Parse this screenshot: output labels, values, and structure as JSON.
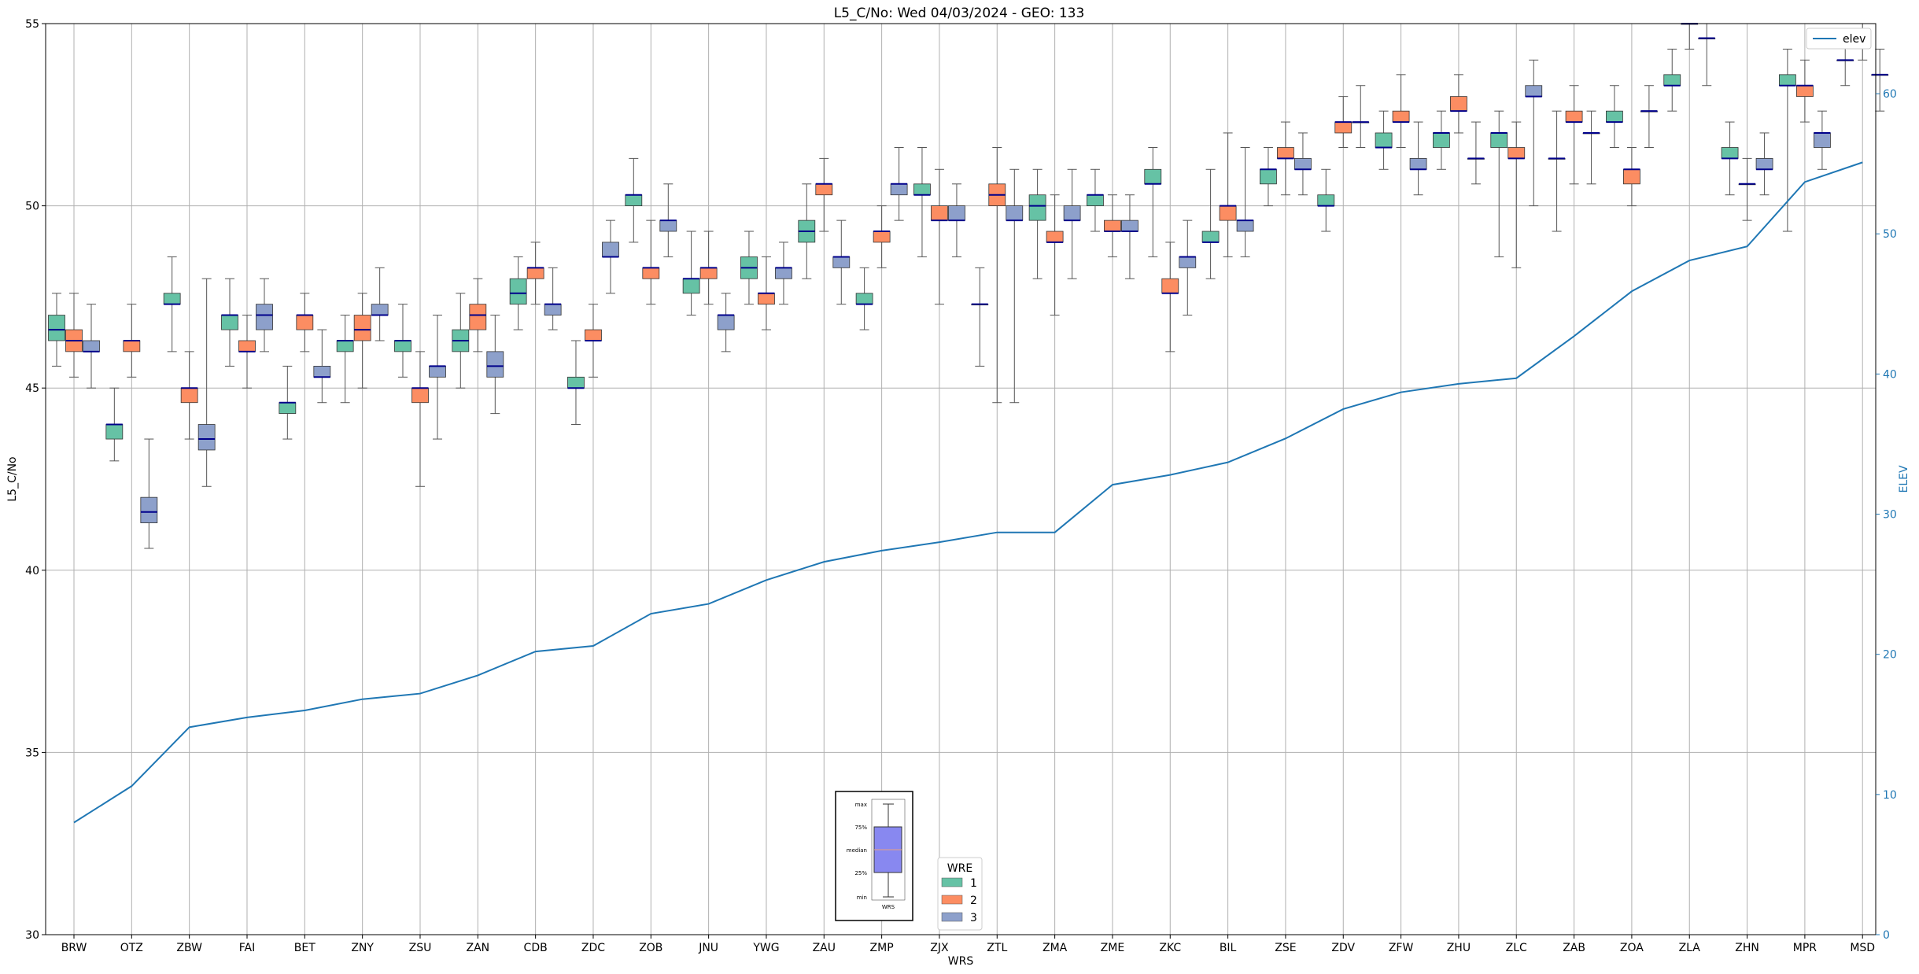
{
  "chart_data": {
    "type": "box",
    "title": "L5_C/No: Wed 04/03/2024 - GEO: 133",
    "xlabel": "WRS",
    "ylabel": "L5_C/No",
    "y2label": "ELEV",
    "ylim": [
      30,
      55
    ],
    "y2lim": [
      0,
      65
    ],
    "yticks": [
      30,
      35,
      40,
      45,
      50,
      55
    ],
    "y2ticks": [
      0,
      10,
      20,
      30,
      40,
      50,
      60
    ],
    "grid": true,
    "colors": {
      "wre1": "#66c2a5",
      "wre2": "#fc8d62",
      "wre3": "#8da0cb",
      "median": "#00008b",
      "elev": "#1f77b4",
      "whisker": "#555555"
    },
    "categories": [
      "BRW",
      "OTZ",
      "ZBW",
      "FAI",
      "BET",
      "ZNY",
      "ZSU",
      "ZAN",
      "CDB",
      "ZDC",
      "ZOB",
      "JNU",
      "YWG",
      "ZAU",
      "ZMP",
      "ZJX",
      "ZTL",
      "ZMA",
      "ZME",
      "ZKC",
      "BIL",
      "ZSE",
      "ZDV",
      "ZFW",
      "ZHU",
      "ZLC",
      "ZAB",
      "ZOA",
      "ZLA",
      "ZHN",
      "MPR",
      "MSD"
    ],
    "wre_legend": {
      "title": "WRE",
      "entries": [
        "1",
        "2",
        "3"
      ]
    },
    "elev_legend": "elev",
    "boxes": [
      {
        "station": "BRW",
        "wre": 1,
        "min": 45.6,
        "q1": 46.3,
        "median": 46.6,
        "q3": 47.0,
        "max": 47.6
      },
      {
        "station": "BRW",
        "wre": 2,
        "min": 45.3,
        "q1": 46.0,
        "median": 46.3,
        "q3": 46.6,
        "max": 47.6
      },
      {
        "station": "BRW",
        "wre": 3,
        "min": 45.0,
        "q1": 46.0,
        "median": 46.0,
        "q3": 46.3,
        "max": 47.3
      },
      {
        "station": "OTZ",
        "wre": 1,
        "min": 43.0,
        "q1": 43.6,
        "median": 44.0,
        "q3": 44.0,
        "max": 45.0
      },
      {
        "station": "OTZ",
        "wre": 2,
        "min": 45.3,
        "q1": 46.0,
        "median": 46.3,
        "q3": 46.3,
        "max": 47.3
      },
      {
        "station": "OTZ",
        "wre": 3,
        "min": 40.6,
        "q1": 41.3,
        "median": 41.6,
        "q3": 42.0,
        "max": 43.6
      },
      {
        "station": "ZBW",
        "wre": 1,
        "min": 46.0,
        "q1": 47.3,
        "median": 47.3,
        "q3": 47.6,
        "max": 48.6
      },
      {
        "station": "ZBW",
        "wre": 2,
        "min": 43.6,
        "q1": 44.6,
        "median": 45.0,
        "q3": 45.0,
        "max": 46.0
      },
      {
        "station": "ZBW",
        "wre": 3,
        "min": 42.3,
        "q1": 43.3,
        "median": 43.6,
        "q3": 44.0,
        "max": 48.0
      },
      {
        "station": "FAI",
        "wre": 1,
        "min": 45.6,
        "q1": 46.6,
        "median": 47.0,
        "q3": 47.0,
        "max": 48.0
      },
      {
        "station": "FAI",
        "wre": 2,
        "min": 45.0,
        "q1": 46.0,
        "median": 46.0,
        "q3": 46.3,
        "max": 47.0
      },
      {
        "station": "FAI",
        "wre": 3,
        "min": 46.0,
        "q1": 46.6,
        "median": 47.0,
        "q3": 47.3,
        "max": 48.0
      },
      {
        "station": "BET",
        "wre": 1,
        "min": 43.6,
        "q1": 44.3,
        "median": 44.6,
        "q3": 44.6,
        "max": 45.6
      },
      {
        "station": "BET",
        "wre": 2,
        "min": 46.0,
        "q1": 46.6,
        "median": 47.0,
        "q3": 47.0,
        "max": 47.6
      },
      {
        "station": "BET",
        "wre": 3,
        "min": 44.6,
        "q1": 45.3,
        "median": 45.3,
        "q3": 45.6,
        "max": 46.6
      },
      {
        "station": "ZNY",
        "wre": 1,
        "min": 44.6,
        "q1": 46.0,
        "median": 46.3,
        "q3": 46.3,
        "max": 47.0
      },
      {
        "station": "ZNY",
        "wre": 2,
        "min": 45.0,
        "q1": 46.3,
        "median": 46.6,
        "q3": 47.0,
        "max": 47.6
      },
      {
        "station": "ZNY",
        "wre": 3,
        "min": 46.3,
        "q1": 47.0,
        "median": 47.0,
        "q3": 47.3,
        "max": 48.3
      },
      {
        "station": "ZSU",
        "wre": 1,
        "min": 45.3,
        "q1": 46.0,
        "median": 46.3,
        "q3": 46.3,
        "max": 47.3
      },
      {
        "station": "ZSU",
        "wre": 2,
        "min": 42.3,
        "q1": 44.6,
        "median": 45.0,
        "q3": 45.0,
        "max": 46.0
      },
      {
        "station": "ZSU",
        "wre": 3,
        "min": 43.6,
        "q1": 45.3,
        "median": 45.6,
        "q3": 45.6,
        "max": 47.0
      },
      {
        "station": "ZAN",
        "wre": 1,
        "min": 45.0,
        "q1": 46.0,
        "median": 46.3,
        "q3": 46.6,
        "max": 47.6
      },
      {
        "station": "ZAN",
        "wre": 2,
        "min": 46.0,
        "q1": 46.6,
        "median": 47.0,
        "q3": 47.3,
        "max": 48.0
      },
      {
        "station": "ZAN",
        "wre": 3,
        "min": 44.3,
        "q1": 45.3,
        "median": 45.6,
        "q3": 46.0,
        "max": 47.0
      },
      {
        "station": "CDB",
        "wre": 1,
        "min": 46.6,
        "q1": 47.3,
        "median": 47.6,
        "q3": 48.0,
        "max": 48.6
      },
      {
        "station": "CDB",
        "wre": 2,
        "min": 47.3,
        "q1": 48.0,
        "median": 48.3,
        "q3": 48.3,
        "max": 49.0
      },
      {
        "station": "CDB",
        "wre": 3,
        "min": 46.6,
        "q1": 47.0,
        "median": 47.3,
        "q3": 47.3,
        "max": 48.3
      },
      {
        "station": "ZDC",
        "wre": 1,
        "min": 44.0,
        "q1": 45.0,
        "median": 45.0,
        "q3": 45.3,
        "max": 46.3
      },
      {
        "station": "ZDC",
        "wre": 2,
        "min": 45.3,
        "q1": 46.3,
        "median": 46.3,
        "q3": 46.6,
        "max": 47.3
      },
      {
        "station": "ZDC",
        "wre": 3,
        "min": 47.6,
        "q1": 48.6,
        "median": 48.6,
        "q3": 49.0,
        "max": 49.6
      },
      {
        "station": "ZOB",
        "wre": 1,
        "min": 49.0,
        "q1": 50.0,
        "median": 50.3,
        "q3": 50.3,
        "max": 51.3
      },
      {
        "station": "ZOB",
        "wre": 2,
        "min": 47.3,
        "q1": 48.0,
        "median": 48.3,
        "q3": 48.3,
        "max": 49.6
      },
      {
        "station": "ZOB",
        "wre": 3,
        "min": 48.6,
        "q1": 49.3,
        "median": 49.6,
        "q3": 49.6,
        "max": 50.6
      },
      {
        "station": "JNU",
        "wre": 1,
        "min": 47.0,
        "q1": 47.6,
        "median": 48.0,
        "q3": 48.0,
        "max": 49.3
      },
      {
        "station": "JNU",
        "wre": 2,
        "min": 47.3,
        "q1": 48.0,
        "median": 48.3,
        "q3": 48.3,
        "max": 49.3
      },
      {
        "station": "JNU",
        "wre": 3,
        "min": 46.0,
        "q1": 46.6,
        "median": 47.0,
        "q3": 47.0,
        "max": 47.6
      },
      {
        "station": "YWG",
        "wre": 1,
        "min": 47.3,
        "q1": 48.0,
        "median": 48.3,
        "q3": 48.6,
        "max": 49.3
      },
      {
        "station": "YWG",
        "wre": 2,
        "min": 46.6,
        "q1": 47.3,
        "median": 47.6,
        "q3": 47.6,
        "max": 48.6
      },
      {
        "station": "YWG",
        "wre": 3,
        "min": 47.3,
        "q1": 48.0,
        "median": 48.3,
        "q3": 48.3,
        "max": 49.0
      },
      {
        "station": "ZAU",
        "wre": 1,
        "min": 48.0,
        "q1": 49.0,
        "median": 49.3,
        "q3": 49.6,
        "max": 50.6
      },
      {
        "station": "ZAU",
        "wre": 2,
        "min": 49.3,
        "q1": 50.3,
        "median": 50.6,
        "q3": 50.6,
        "max": 51.3
      },
      {
        "station": "ZAU",
        "wre": 3,
        "min": 47.3,
        "q1": 48.3,
        "median": 48.6,
        "q3": 48.6,
        "max": 49.6
      },
      {
        "station": "ZMP",
        "wre": 1,
        "min": 46.6,
        "q1": 47.3,
        "median": 47.3,
        "q3": 47.6,
        "max": 48.3
      },
      {
        "station": "ZMP",
        "wre": 2,
        "min": 48.3,
        "q1": 49.0,
        "median": 49.3,
        "q3": 49.3,
        "max": 50.0
      },
      {
        "station": "ZMP",
        "wre": 3,
        "min": 49.6,
        "q1": 50.3,
        "median": 50.6,
        "q3": 50.6,
        "max": 51.6
      },
      {
        "station": "ZJX",
        "wre": 1,
        "min": 48.6,
        "q1": 50.3,
        "median": 50.3,
        "q3": 50.6,
        "max": 51.6
      },
      {
        "station": "ZJX",
        "wre": 2,
        "min": 47.3,
        "q1": 49.6,
        "median": 49.6,
        "q3": 50.0,
        "max": 51.0
      },
      {
        "station": "ZJX",
        "wre": 3,
        "min": 48.6,
        "q1": 49.6,
        "median": 49.6,
        "q3": 50.0,
        "max": 50.6
      },
      {
        "station": "ZTL",
        "wre": 1,
        "min": 45.6,
        "q1": 47.3,
        "median": 47.3,
        "q3": 47.3,
        "max": 48.3
      },
      {
        "station": "ZTL",
        "wre": 2,
        "min": 44.6,
        "q1": 50.0,
        "median": 50.3,
        "q3": 50.6,
        "max": 51.6
      },
      {
        "station": "ZTL",
        "wre": 3,
        "min": 44.6,
        "q1": 49.6,
        "median": 49.6,
        "q3": 50.0,
        "max": 51.0
      },
      {
        "station": "ZMA",
        "wre": 1,
        "min": 48.0,
        "q1": 49.6,
        "median": 50.0,
        "q3": 50.3,
        "max": 51.0
      },
      {
        "station": "ZMA",
        "wre": 2,
        "min": 47.0,
        "q1": 49.0,
        "median": 49.0,
        "q3": 49.3,
        "max": 50.3
      },
      {
        "station": "ZMA",
        "wre": 3,
        "min": 48.0,
        "q1": 49.6,
        "median": 49.6,
        "q3": 50.0,
        "max": 51.0
      },
      {
        "station": "ZME",
        "wre": 1,
        "min": 49.3,
        "q1": 50.0,
        "median": 50.3,
        "q3": 50.3,
        "max": 51.0
      },
      {
        "station": "ZME",
        "wre": 2,
        "min": 48.6,
        "q1": 49.3,
        "median": 49.3,
        "q3": 49.6,
        "max": 50.3
      },
      {
        "station": "ZME",
        "wre": 3,
        "min": 48.0,
        "q1": 49.3,
        "median": 49.3,
        "q3": 49.6,
        "max": 50.3
      },
      {
        "station": "ZKC",
        "wre": 1,
        "min": 48.6,
        "q1": 50.6,
        "median": 50.6,
        "q3": 51.0,
        "max": 51.6
      },
      {
        "station": "ZKC",
        "wre": 2,
        "min": 46.0,
        "q1": 47.6,
        "median": 47.6,
        "q3": 48.0,
        "max": 49.0
      },
      {
        "station": "ZKC",
        "wre": 3,
        "min": 47.0,
        "q1": 48.3,
        "median": 48.6,
        "q3": 48.6,
        "max": 49.6
      },
      {
        "station": "BIL",
        "wre": 1,
        "min": 48.0,
        "q1": 49.0,
        "median": 49.0,
        "q3": 49.3,
        "max": 51.0
      },
      {
        "station": "BIL",
        "wre": 2,
        "min": 48.6,
        "q1": 49.6,
        "median": 50.0,
        "q3": 50.0,
        "max": 52.0
      },
      {
        "station": "BIL",
        "wre": 3,
        "min": 48.6,
        "q1": 49.3,
        "median": 49.6,
        "q3": 49.6,
        "max": 51.6
      },
      {
        "station": "ZSE",
        "wre": 1,
        "min": 50.0,
        "q1": 50.6,
        "median": 51.0,
        "q3": 51.0,
        "max": 51.6
      },
      {
        "station": "ZSE",
        "wre": 2,
        "min": 50.3,
        "q1": 51.3,
        "median": 51.3,
        "q3": 51.6,
        "max": 52.3
      },
      {
        "station": "ZSE",
        "wre": 3,
        "min": 50.3,
        "q1": 51.0,
        "median": 51.0,
        "q3": 51.3,
        "max": 52.0
      },
      {
        "station": "ZDV",
        "wre": 1,
        "min": 49.3,
        "q1": 50.0,
        "median": 50.0,
        "q3": 50.3,
        "max": 51.0
      },
      {
        "station": "ZDV",
        "wre": 2,
        "min": 51.6,
        "q1": 52.0,
        "median": 52.3,
        "q3": 52.3,
        "max": 53.0
      },
      {
        "station": "ZDV",
        "wre": 3,
        "min": 51.6,
        "q1": 52.3,
        "median": 52.3,
        "q3": 52.3,
        "max": 53.3
      },
      {
        "station": "ZFW",
        "wre": 1,
        "min": 51.0,
        "q1": 51.6,
        "median": 51.6,
        "q3": 52.0,
        "max": 52.6
      },
      {
        "station": "ZFW",
        "wre": 2,
        "min": 51.6,
        "q1": 52.3,
        "median": 52.3,
        "q3": 52.6,
        "max": 53.6
      },
      {
        "station": "ZFW",
        "wre": 3,
        "min": 50.3,
        "q1": 51.0,
        "median": 51.0,
        "q3": 51.3,
        "max": 52.3
      },
      {
        "station": "ZHU",
        "wre": 1,
        "min": 51.0,
        "q1": 51.6,
        "median": 52.0,
        "q3": 52.0,
        "max": 52.6
      },
      {
        "station": "ZHU",
        "wre": 2,
        "min": 52.0,
        "q1": 52.6,
        "median": 52.6,
        "q3": 53.0,
        "max": 53.6
      },
      {
        "station": "ZHU",
        "wre": 3,
        "min": 50.6,
        "q1": 51.3,
        "median": 51.3,
        "q3": 51.3,
        "max": 52.3
      },
      {
        "station": "ZLC",
        "wre": 1,
        "min": 48.6,
        "q1": 51.6,
        "median": 52.0,
        "q3": 52.0,
        "max": 52.6
      },
      {
        "station": "ZLC",
        "wre": 2,
        "min": 48.3,
        "q1": 51.3,
        "median": 51.3,
        "q3": 51.6,
        "max": 52.3
      },
      {
        "station": "ZLC",
        "wre": 3,
        "min": 50.0,
        "q1": 53.0,
        "median": 53.0,
        "q3": 53.3,
        "max": 54.0
      },
      {
        "station": "ZAB",
        "wre": 1,
        "min": 49.3,
        "q1": 51.3,
        "median": 51.3,
        "q3": 51.3,
        "max": 52.6
      },
      {
        "station": "ZAB",
        "wre": 2,
        "min": 50.6,
        "q1": 52.3,
        "median": 52.3,
        "q3": 52.6,
        "max": 53.3
      },
      {
        "station": "ZAB",
        "wre": 3,
        "min": 50.6,
        "q1": 52.0,
        "median": 52.0,
        "q3": 52.0,
        "max": 52.6
      },
      {
        "station": "ZOA",
        "wre": 1,
        "min": 51.6,
        "q1": 52.3,
        "median": 52.3,
        "q3": 52.6,
        "max": 53.3
      },
      {
        "station": "ZOA",
        "wre": 2,
        "min": 50.0,
        "q1": 50.6,
        "median": 51.0,
        "q3": 51.0,
        "max": 51.6
      },
      {
        "station": "ZOA",
        "wre": 3,
        "min": 51.6,
        "q1": 52.6,
        "median": 52.6,
        "q3": 52.6,
        "max": 53.3
      },
      {
        "station": "ZLA",
        "wre": 1,
        "min": 52.6,
        "q1": 53.3,
        "median": 53.3,
        "q3": 53.6,
        "max": 54.3
      },
      {
        "station": "ZLA",
        "wre": 2,
        "min": 54.3,
        "q1": 55.0,
        "median": 55.0,
        "q3": 55.0,
        "max": 55.6
      },
      {
        "station": "ZLA",
        "wre": 3,
        "min": 53.3,
        "q1": 54.6,
        "median": 54.6,
        "q3": 54.6,
        "max": 55.3
      },
      {
        "station": "ZHN",
        "wre": 1,
        "min": 50.3,
        "q1": 51.3,
        "median": 51.3,
        "q3": 51.6,
        "max": 52.3
      },
      {
        "station": "ZHN",
        "wre": 2,
        "min": 49.6,
        "q1": 50.6,
        "median": 50.6,
        "q3": 50.6,
        "max": 51.3
      },
      {
        "station": "ZHN",
        "wre": 3,
        "min": 50.3,
        "q1": 51.0,
        "median": 51.0,
        "q3": 51.3,
        "max": 52.0
      },
      {
        "station": "MPR",
        "wre": 1,
        "min": 49.3,
        "q1": 53.3,
        "median": 53.3,
        "q3": 53.6,
        "max": 54.3
      },
      {
        "station": "MPR",
        "wre": 2,
        "min": 52.3,
        "q1": 53.0,
        "median": 53.3,
        "q3": 53.3,
        "max": 54.0
      },
      {
        "station": "MPR",
        "wre": 3,
        "min": 51.0,
        "q1": 51.6,
        "median": 52.0,
        "q3": 52.0,
        "max": 52.6
      },
      {
        "station": "MSD",
        "wre": 1,
        "min": 53.3,
        "q1": 54.0,
        "median": 54.0,
        "q3": 54.0,
        "max": 54.6
      },
      {
        "station": "MSD",
        "wre": 2,
        "min": 54.0,
        "q1": 54.6,
        "median": 54.6,
        "q3": 54.6,
        "max": 55.3
      },
      {
        "station": "MSD",
        "wre": 3,
        "min": 52.6,
        "q1": 53.6,
        "median": 53.6,
        "q3": 53.6,
        "max": 54.3
      }
    ],
    "elev": {
      "name": "elev",
      "x": [
        "BRW",
        "OTZ",
        "ZBW",
        "FAI",
        "BET",
        "ZNY",
        "ZSU",
        "ZAN",
        "CDB",
        "ZDC",
        "ZOB",
        "JNU",
        "YWG",
        "ZAU",
        "ZMP",
        "ZJX",
        "ZTL",
        "ZMA",
        "ZME",
        "ZKC",
        "BIL",
        "ZSE",
        "ZDV",
        "ZFW",
        "ZHU",
        "ZLC",
        "ZAB",
        "ZOA",
        "ZLA",
        "ZHN",
        "MPR",
        "MSD"
      ],
      "values": [
        8.0,
        10.6,
        14.8,
        15.5,
        16.0,
        16.8,
        17.2,
        18.5,
        20.2,
        20.6,
        22.9,
        23.6,
        25.3,
        26.6,
        27.4,
        28.0,
        28.7,
        28.7,
        32.1,
        32.8,
        33.7,
        35.4,
        37.5,
        38.7,
        39.3,
        39.7,
        42.7,
        45.9,
        48.1,
        49.1,
        53.7,
        55.1
      ]
    },
    "boxplot_key": {
      "labels": [
        "max",
        "75%",
        "median",
        "25%",
        "min"
      ],
      "caption": "WRS"
    }
  }
}
